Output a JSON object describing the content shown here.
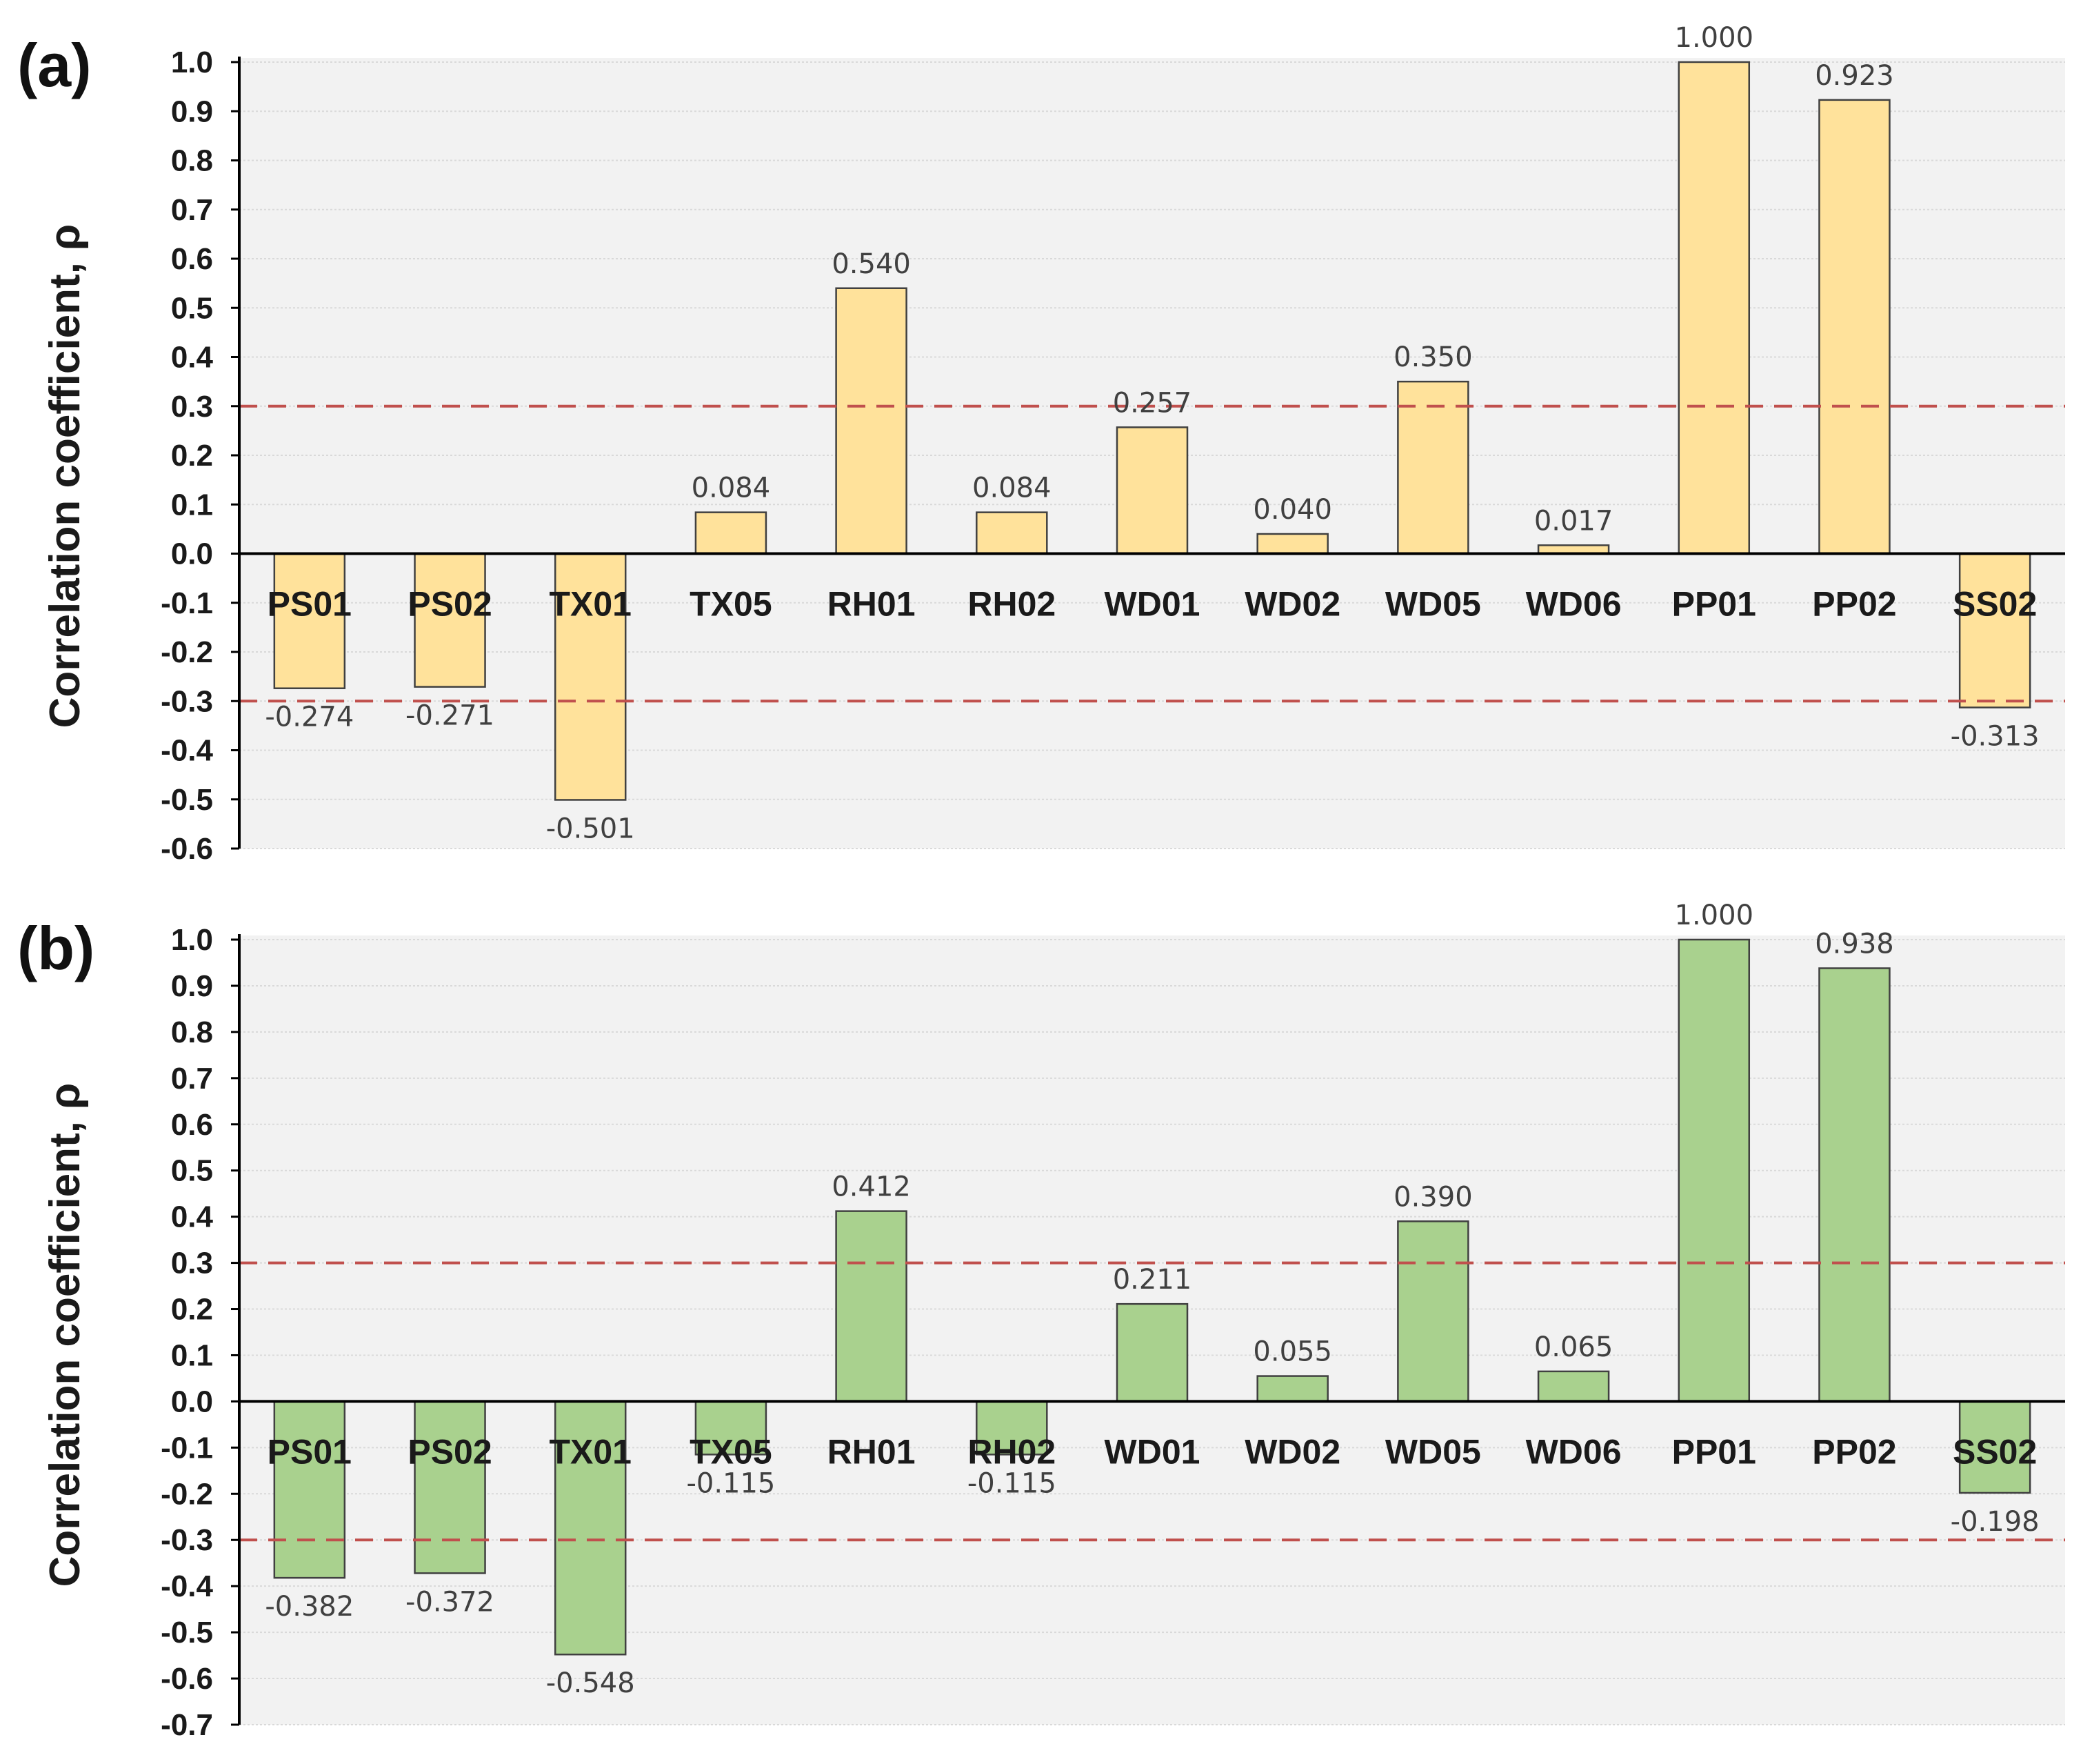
{
  "chart_data": [
    {
      "panel": "(a)",
      "type": "bar",
      "ylabel": "Correlation coefficient, ρ",
      "ylim": [
        -0.6,
        1.0
      ],
      "yticks": [
        "1.0",
        "0.9",
        "0.8",
        "0.7",
        "0.6",
        "0.5",
        "0.4",
        "0.3",
        "0.2",
        "0.1",
        "0.0",
        "-0.1",
        "-0.2",
        "-0.3",
        "-0.4",
        "-0.5",
        "-0.6"
      ],
      "threshold_lines": [
        0.3,
        -0.3
      ],
      "categories": [
        "PS01",
        "PS02",
        "TX01",
        "TX05",
        "RH01",
        "RH02",
        "WD01",
        "WD02",
        "WD05",
        "WD06",
        "PP01",
        "PP02",
        "SS02"
      ],
      "values": [
        -0.274,
        -0.271,
        -0.501,
        0.084,
        0.54,
        0.084,
        0.257,
        0.04,
        0.35,
        0.017,
        1.0,
        0.923,
        -0.313
      ],
      "value_labels": [
        "-0.274",
        "-0.271",
        "-0.501",
        "0.084",
        "0.540",
        "0.084",
        "0.257",
        "0.040",
        "0.350",
        "0.017",
        "1.000",
        "0.923",
        "-0.313"
      ],
      "bar_color": "#FFE29B"
    },
    {
      "panel": "(b)",
      "type": "bar",
      "ylabel": "Correlation coefficient, ρ",
      "ylim": [
        -0.7,
        1.0
      ],
      "yticks": [
        "1.0",
        "0.9",
        "0.8",
        "0.7",
        "0.6",
        "0.5",
        "0.4",
        "0.3",
        "0.2",
        "0.1",
        "0.0",
        "-0.1",
        "-0.2",
        "-0.3",
        "-0.4",
        "-0.5",
        "-0.6",
        "-0.7"
      ],
      "threshold_lines": [
        0.3,
        -0.3
      ],
      "categories": [
        "PS01",
        "PS02",
        "TX01",
        "TX05",
        "RH01",
        "RH02",
        "WD01",
        "WD02",
        "WD05",
        "WD06",
        "PP01",
        "PP02",
        "SS02"
      ],
      "values": [
        -0.382,
        -0.372,
        -0.548,
        -0.115,
        0.412,
        -0.115,
        0.211,
        0.055,
        0.39,
        0.065,
        1.0,
        0.938,
        -0.198
      ],
      "value_labels": [
        "-0.382",
        "-0.372",
        "-0.548",
        "-0.115",
        "0.412",
        "-0.115",
        "0.211",
        "0.055",
        "0.390",
        "0.065",
        "1.000",
        "0.938",
        "-0.198"
      ],
      "bar_color": "#A9D18E"
    }
  ],
  "colors": {
    "plot_bg": "#F2F2F2",
    "grid": "#D9D9D9",
    "axis": "#000000",
    "threshold": "#C0504D",
    "bar_edge": "#404040"
  }
}
